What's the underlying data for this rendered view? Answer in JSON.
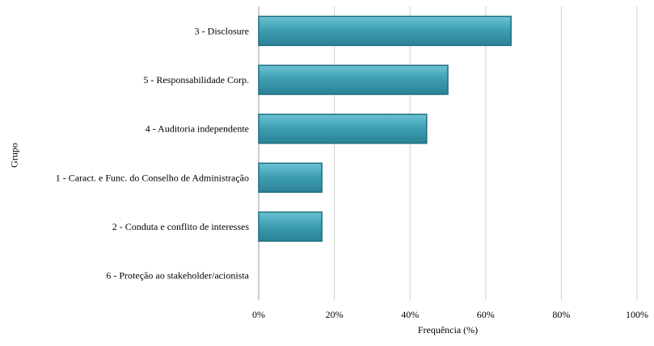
{
  "chart_data": {
    "type": "bar",
    "orientation": "horizontal",
    "categories": [
      "3 - Disclosure",
      "5 - Responsabilidade Corp.",
      "4 - Auditoria independente",
      "1 - Caract. e Func. do Conselho de Administração",
      "2 - Conduta e conflito de interesses",
      "6 - Proteção ao stakeholder/acionista"
    ],
    "values": [
      66.7,
      50.0,
      44.4,
      16.7,
      16.7,
      0
    ],
    "xlabel": "Frequência (%)",
    "ylabel": "Grupo",
    "xlim": [
      0,
      100
    ],
    "xticks": [
      "0%",
      "20%",
      "40%",
      "60%",
      "80%",
      "100%"
    ],
    "xtick_values": [
      0,
      20,
      40,
      60,
      80,
      100
    ],
    "grid": "vertical",
    "bar_color": "#3fa0b4",
    "bar_edge_color": "#1f6f80"
  }
}
